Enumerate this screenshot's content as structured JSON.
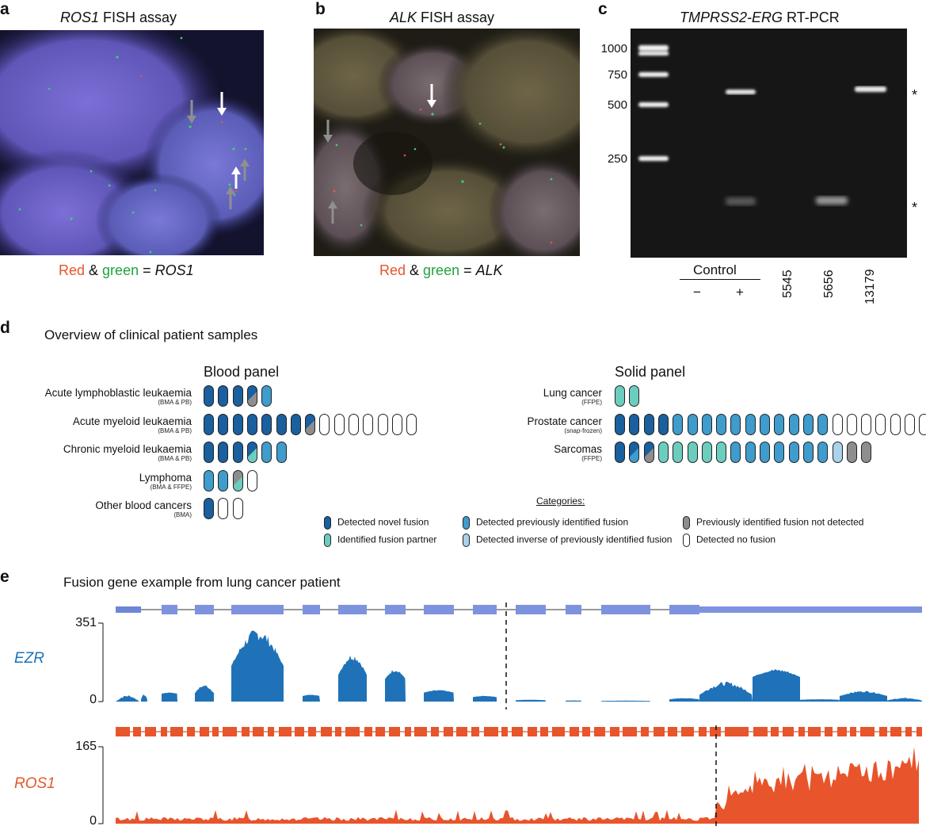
{
  "panel_a": {
    "letter": "a",
    "title_gene": "ROS1",
    "title_rest": " FISH assay",
    "caption": {
      "red": "Red",
      "amp": " & ",
      "green": "green",
      "eq": " = ",
      "gene": "ROS1"
    }
  },
  "panel_b": {
    "letter": "b",
    "title_gene": "ALK",
    "title_rest": " FISH assay",
    "caption": {
      "red": "Red",
      "amp": " & ",
      "green": "green",
      "eq": " = ",
      "gene": "ALK"
    }
  },
  "panel_c": {
    "letter": "c",
    "title_gene": "TMPRSS2-ERG",
    "title_rest": " RT-PCR",
    "ladder": [
      "1000",
      "750",
      "500",
      "250"
    ],
    "control_label": "Control",
    "lanes": [
      "−",
      "+",
      "5545",
      "5656",
      "13179"
    ],
    "asterisk": "*"
  },
  "panel_d": {
    "letter": "d",
    "title": "Overview of clinical patient samples",
    "blood_title": "Blood panel",
    "solid_title": "Solid panel",
    "blood_rows": [
      {
        "name": "Acute lymphoblastic leukaemia",
        "sub": "(BMA & PB)",
        "pills": [
          "N",
          "N",
          "N",
          "NG",
          "P"
        ]
      },
      {
        "name": "Acute myeloid leukaemia",
        "sub": "(BMA & PB)",
        "pills": [
          "N",
          "N",
          "N",
          "N",
          "N",
          "N",
          "N",
          "NG",
          "E",
          "E",
          "E",
          "E",
          "E",
          "E",
          "E"
        ]
      },
      {
        "name": "Chronic myeloid leukaemia",
        "sub": "(BMA & PB)",
        "pills": [
          "N",
          "N",
          "N",
          "NT",
          "P",
          "P"
        ]
      },
      {
        "name": "Lymphoma",
        "sub": "(BMA & FFPE)",
        "pills": [
          "P",
          "P",
          "GT",
          "E"
        ]
      },
      {
        "name": "Other blood cancers",
        "sub": "(BMA)",
        "pills": [
          "N",
          "E",
          "E"
        ]
      }
    ],
    "solid_rows": [
      {
        "name": "Lung cancer",
        "sub": "(FFPE)",
        "pills": [
          "T",
          "T"
        ]
      },
      {
        "name": "Prostate cancer",
        "sub": "(snap-frozen)",
        "pills": [
          "N",
          "N",
          "N",
          "N",
          "P",
          "P",
          "P",
          "P",
          "P",
          "P",
          "P",
          "P",
          "P",
          "P",
          "P",
          "E",
          "E",
          "E",
          "E",
          "E",
          "E",
          "E"
        ]
      },
      {
        "name": "Sarcomas",
        "sub": "(FFPE)",
        "pills": [
          "N",
          "NP",
          "NG",
          "T",
          "T",
          "T",
          "T",
          "T",
          "P",
          "P",
          "P",
          "P",
          "P",
          "P",
          "P",
          "I",
          "G",
          "G"
        ]
      }
    ],
    "categories_title": "Categories:",
    "legend": [
      {
        "code": "N",
        "label": "Detected novel fusion"
      },
      {
        "code": "T",
        "label": "Identified fusion partner"
      },
      {
        "code": "P",
        "label": "Detected previously identified fusion"
      },
      {
        "code": "I",
        "label": "Detected inverse of previously identified fusion"
      },
      {
        "code": "G",
        "label": "Previously identified fusion not detected"
      },
      {
        "code": "E",
        "label": "Detected no fusion"
      }
    ],
    "colors": {
      "N": "#1a5f9e",
      "T": "#6ccdbf",
      "P": "#3f9ccc",
      "I": "#a9d3ea",
      "G": "#8e8e8e",
      "E": "#ffffff"
    }
  },
  "panel_e": {
    "letter": "e",
    "title": "Fusion gene example from lung cancer patient",
    "ezr": {
      "label": "EZR",
      "ymax_label": "351",
      "ymin_label": "0",
      "ymax": 351,
      "color": "#1f72b8"
    },
    "ros1": {
      "label": "ROS1",
      "ymax_label": "165",
      "ymin_label": "0",
      "ymax": 165,
      "color": "#e8542b"
    }
  }
}
